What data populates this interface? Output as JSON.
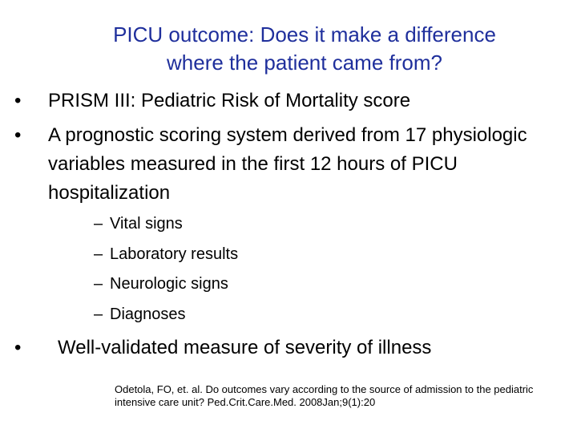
{
  "slide": {
    "title_line1": "PICU outcome: Does it make a difference",
    "title_line2": "where the patient came from?",
    "bullet_glyph": "•",
    "dash_glyph": "–",
    "bullets": [
      {
        "text": "PRISM III: Pediatric Risk of Mortality score"
      },
      {
        "text": "A prognostic scoring system derived from 17 physiologic variables measured in the first 12 hours of PICU hospitalization"
      },
      {
        "text": "Well-validated measure of severity of illness"
      }
    ],
    "subitems": [
      {
        "text": "Vital signs"
      },
      {
        "text": "Laboratory results"
      },
      {
        "text": "Neurologic signs"
      },
      {
        "text": "Diagnoses"
      }
    ],
    "citation": "Odetola, FO, et. al. Do outcomes vary according to the source of admission to the pediatric intensive care unit? Ped.Crit.Care.Med. 2008Jan;9(1):20",
    "colors": {
      "title": "#1f2f9c",
      "body": "#000000",
      "background": "#ffffff"
    }
  }
}
